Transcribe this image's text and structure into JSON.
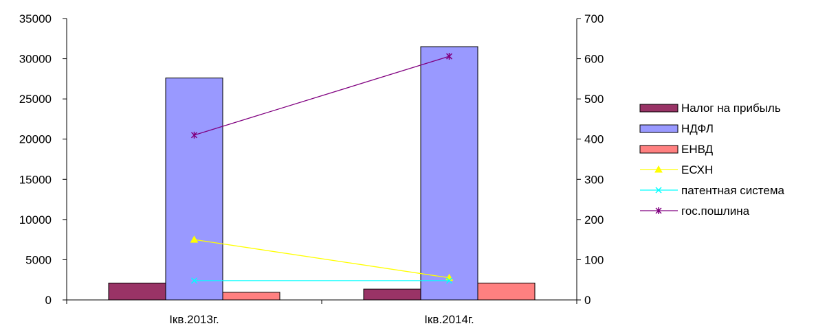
{
  "chart_data": {
    "type": "bar",
    "categories": [
      "Iкв.2013г.",
      "Iкв.2014г."
    ],
    "y_left": {
      "ticks": [
        "0",
        "5000",
        "10000",
        "15000",
        "20000",
        "25000",
        "30000",
        "35000"
      ],
      "range": [
        0,
        35000
      ]
    },
    "y_right": {
      "ticks": [
        "0",
        "100",
        "200",
        "300",
        "400",
        "500",
        "600",
        "700"
      ],
      "range": [
        0,
        700
      ]
    },
    "bar_series": [
      {
        "name": "Налог на прибыль",
        "color": "#993366",
        "values": [
          2100,
          1350
        ]
      },
      {
        "name": "НДФЛ",
        "color": "#9999ff",
        "values": [
          27600,
          31500
        ]
      },
      {
        "name": "ЕНВД",
        "color": "#ff8080",
        "values": [
          950,
          2100
        ]
      }
    ],
    "line_series": [
      {
        "name": "ЕСХН",
        "color": "#ffff00",
        "marker": "triangle",
        "axis": "right",
        "values": [
          150,
          55
        ]
      },
      {
        "name": "патентная система",
        "color": "#00ffff",
        "marker": "x",
        "axis": "right",
        "values": [
          48,
          48
        ]
      },
      {
        "name": "гос.пошлина",
        "color": "#800080",
        "marker": "star",
        "axis": "right",
        "values": [
          410,
          606
        ]
      }
    ],
    "legend_position": "right",
    "grid": false
  }
}
